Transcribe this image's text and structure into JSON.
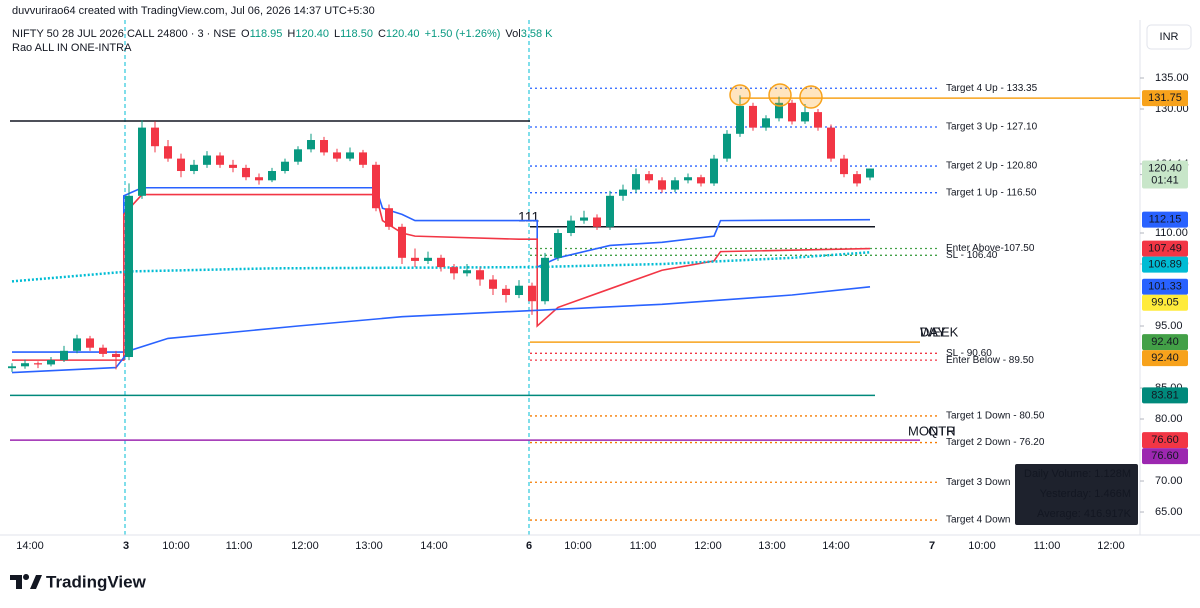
{
  "chart_data": {
    "type": "candlestick",
    "credit": "duvvurirao64 created with TradingView.com, Jul 06, 2026 14:37 UTC+5:30",
    "symbol": "NIFTY 50 28 JUL 2026 CALL 24800 · 3 · NSE",
    "ohlc": [
      {
        "key": "O",
        "value": 118.95,
        "label": "118.95"
      },
      {
        "key": "H",
        "value": 120.4,
        "label": "120.40"
      },
      {
        "key": "L",
        "value": 118.5,
        "label": "118.50"
      },
      {
        "key": "C",
        "value": 120.4,
        "label": "120.40"
      }
    ],
    "change": "+1.50 (+1.26%)",
    "volume_key": "Vol",
    "volume": "3.58 K",
    "indicator": "Rao ALL IN ONE-INTRA",
    "currency": "INR",
    "brand": "TradingView",
    "ylim": [
      62.1,
      139.84
    ],
    "yticks": [
      {
        "value": 135,
        "label": "135.00"
      },
      {
        "value": 130,
        "label": "130.00"
      },
      {
        "value": 121.14,
        "label": "121.14"
      },
      {
        "value": 119.42,
        "label": "119.42"
      },
      {
        "value": 110,
        "label": "110.00"
      },
      {
        "value": 105,
        "label": "105.00"
      },
      {
        "value": 95,
        "label": "95.00"
      },
      {
        "value": 85,
        "label": "85.00"
      },
      {
        "value": 80,
        "label": "80.00"
      },
      {
        "value": 70,
        "label": "70.00"
      },
      {
        "value": 65,
        "label": "65.00"
      }
    ],
    "time_labels": [
      "14:00",
      "3",
      "10:00",
      "11:00",
      "12:00",
      "13:00",
      "14:00",
      "6",
      "10:00",
      "11:00",
      "12:00",
      "13:00",
      "14:00",
      "7",
      "10:00",
      "11:00",
      "12:00"
    ],
    "up_color": "#089981",
    "down_color": "#f23645",
    "candles": [
      [
        88.2,
        89,
        87.6,
        88.5
      ],
      [
        88.5,
        89.6,
        88.1,
        89
      ],
      [
        89,
        89.3,
        88.2,
        88.8
      ],
      [
        88.8,
        90,
        88.5,
        89.5
      ],
      [
        89.5,
        91.8,
        89.2,
        91
      ],
      [
        91,
        93.6,
        90.6,
        93
      ],
      [
        93,
        93.4,
        91,
        91.5
      ],
      [
        91.5,
        92,
        90,
        90.5
      ],
      [
        90.5,
        91,
        88,
        90
      ],
      [
        90,
        118,
        89.5,
        116
      ],
      [
        116,
        128.2,
        115.5,
        127
      ],
      [
        127,
        128,
        123,
        124
      ],
      [
        124,
        125,
        121.5,
        122
      ],
      [
        122,
        122.8,
        119,
        120
      ],
      [
        120,
        121.8,
        119.5,
        121
      ],
      [
        121,
        123.2,
        120.5,
        122.5
      ],
      [
        122.5,
        123,
        120.5,
        121
      ],
      [
        121,
        121.8,
        119.8,
        120.5
      ],
      [
        120.5,
        121,
        118.5,
        119
      ],
      [
        119,
        119.6,
        117.8,
        118.5
      ],
      [
        118.5,
        120.5,
        118.2,
        120
      ],
      [
        120,
        122,
        119.6,
        121.5
      ],
      [
        121.5,
        124,
        121,
        123.5
      ],
      [
        123.5,
        126,
        123,
        125
      ],
      [
        125,
        125.5,
        122.5,
        123
      ],
      [
        123,
        123.6,
        121.5,
        122
      ],
      [
        122,
        123.8,
        121.6,
        123
      ],
      [
        123,
        123.4,
        120.5,
        121
      ],
      [
        121,
        121.5,
        113.5,
        114
      ],
      [
        114,
        114.6,
        110.5,
        111
      ],
      [
        111,
        111.5,
        105,
        106
      ],
      [
        106,
        107.5,
        104.5,
        105.5
      ],
      [
        105.5,
        107,
        105,
        106
      ],
      [
        106,
        106.5,
        103.8,
        104.5
      ],
      [
        104.5,
        105,
        102.5,
        103.5
      ],
      [
        103.5,
        105,
        103,
        104
      ],
      [
        104,
        104.5,
        101.5,
        102.5
      ],
      [
        102.5,
        103.2,
        100,
        101
      ],
      [
        101,
        101.6,
        98.8,
        100
      ],
      [
        100,
        102.4,
        99.5,
        101.5
      ],
      [
        101.5,
        102,
        96.8,
        99
      ],
      [
        99,
        106.8,
        98.5,
        106
      ],
      [
        106,
        110.6,
        105.5,
        110
      ],
      [
        110,
        112.8,
        109.5,
        112
      ],
      [
        112,
        113.6,
        111.5,
        112.5
      ],
      [
        112.5,
        113,
        110.5,
        111
      ],
      [
        111,
        116.8,
        110.5,
        116
      ],
      [
        116,
        117.8,
        115.2,
        117
      ],
      [
        117,
        120.4,
        116.5,
        119.5
      ],
      [
        119.5,
        120,
        118,
        118.5
      ],
      [
        118.5,
        119,
        116.5,
        117
      ],
      [
        117,
        119,
        116.6,
        118.5
      ],
      [
        118.5,
        119.6,
        118,
        119
      ],
      [
        119,
        119.4,
        117.5,
        118
      ],
      [
        118,
        122.6,
        117.6,
        122
      ],
      [
        122,
        126.6,
        121.5,
        126
      ],
      [
        126,
        132.2,
        125.5,
        130.5
      ],
      [
        130.5,
        131,
        126.5,
        127
      ],
      [
        127,
        129,
        126.5,
        128.5
      ],
      [
        128.5,
        132,
        128,
        131
      ],
      [
        131,
        131.5,
        127.5,
        128
      ],
      [
        128,
        130.8,
        127.6,
        129.5
      ],
      [
        129.5,
        130,
        126.5,
        127
      ],
      [
        127,
        127.5,
        121.5,
        122
      ],
      [
        122,
        122.6,
        119,
        119.5
      ],
      [
        119.5,
        120,
        117.5,
        118
      ],
      [
        118.95,
        120.4,
        118.5,
        120.4
      ]
    ],
    "series": [
      {
        "color": "#2962ff",
        "style": "solid",
        "x": [
          0,
          8.6,
          8.6,
          10,
          28,
          28.5,
          30,
          31,
          39,
          40.4,
          40.4,
          42,
          46,
          50,
          54,
          54.5,
          66
        ],
        "values": [
          90.8,
          90.8,
          116,
          117.3,
          117.3,
          114,
          113,
          112,
          112,
          112,
          104.5,
          106,
          108,
          108.5,
          109.5,
          112,
          112.15
        ]
      },
      {
        "color": "#f23645",
        "style": "solid",
        "x": [
          0,
          8.6,
          8.6,
          10,
          28,
          28.5,
          30,
          31,
          39,
          40.4,
          40.4,
          42,
          46,
          50,
          54,
          54.5,
          66
        ],
        "values": [
          89.5,
          89.5,
          113,
          116.2,
          116.2,
          112,
          110,
          109.5,
          109,
          109,
          95,
          98,
          101,
          104,
          105.5,
          107,
          107.49
        ]
      },
      {
        "color": "#00bcd4",
        "style": "dotted",
        "x": [
          0,
          9,
          20,
          30,
          40,
          50,
          60,
          66
        ],
        "values": [
          102.2,
          103.8,
          104.3,
          104.4,
          104.5,
          105,
          106,
          106.89
        ]
      },
      {
        "color": "#2962ff",
        "style": "solid",
        "x": [
          0,
          8,
          9,
          12,
          22,
          30,
          40,
          50,
          60,
          66
        ],
        "values": [
          87.5,
          88.3,
          91,
          93,
          95,
          96.5,
          97.5,
          98.5,
          100,
          101.33
        ]
      }
    ],
    "levels": [
      {
        "label": "Target 4 Up - 133.35",
        "value": 133.35,
        "color": "#2962ff"
      },
      {
        "label": "Target 3 Up - 127.10",
        "value": 127.1,
        "color": "#2962ff"
      },
      {
        "label": "Target 2 Up - 120.80",
        "value": 120.8,
        "color": "#2962ff"
      },
      {
        "label": "Target 1 Up - 116.50",
        "value": 116.5,
        "color": "#2962ff"
      },
      {
        "label": "Enter Above-107.50",
        "value": 107.5,
        "color": "#43a047"
      },
      {
        "label": "SL - 106.40",
        "value": 106.4,
        "color": "#43a047"
      },
      {
        "label": "SL - 90.60",
        "value": 90.6,
        "color": "#f23645"
      },
      {
        "label": "Enter Below - 89.50",
        "value": 89.5,
        "color": "#f23645"
      },
      {
        "label": "Target 1 Down - 80.50",
        "value": 80.5,
        "color": "#f57c00"
      },
      {
        "label": "Target 2 Down - 76.20",
        "value": 76.2,
        "color": "#f57c00"
      },
      {
        "label": "Target 3 Down",
        "value": 69.8,
        "color": "#f57c00"
      },
      {
        "label": "Target 4 Down",
        "value": 63.7,
        "color": "#f57c00"
      }
    ],
    "lines": [
      {
        "value": 128.06,
        "color": "#131722"
      },
      {
        "value": 111,
        "color": "#131722"
      },
      {
        "value": 131.75,
        "color": "#f7a21b"
      },
      {
        "value": 92.4,
        "color": "#f7a21b"
      },
      {
        "value": 83.81,
        "color": "#00897b"
      },
      {
        "value": 76.6,
        "color": "#9c27b0"
      }
    ],
    "period_labels": [
      {
        "text": "DAY",
        "color": "#8d9a2a"
      },
      {
        "text": "WEEK",
        "color": "#f7a21b"
      },
      {
        "text": "MONTH",
        "color": "#e91e63"
      },
      {
        "text": "QTR",
        "color": "#9c27b0"
      }
    ],
    "price_labels": [
      {
        "value": 131.75,
        "label": "131.75",
        "color": "#f7a21b",
        "text_color": "#131722"
      },
      {
        "value": 120.4,
        "label": "120.40",
        "color": "#c8e6c9",
        "text_color": "#131722",
        "countdown": "01:41"
      },
      {
        "value": 112.15,
        "label": "112.15",
        "color": "#2962ff",
        "text_color": "#ffffff"
      },
      {
        "value": 107.49,
        "label": "107.49",
        "color": "#f23645",
        "text_color": "#ffffff"
      },
      {
        "value": 106.89,
        "label": "106.89",
        "color": "#00bcd4",
        "text_color": "#131722"
      },
      {
        "value": 101.33,
        "label": "101.33",
        "color": "#2962ff",
        "text_color": "#ffffff"
      },
      {
        "value": 99.05,
        "label": "99.05",
        "color": "#ffeb3b",
        "text_color": "#131722"
      },
      {
        "value": 92.4,
        "label": "92.40",
        "color": "#43a047",
        "text_color": "#ffffff"
      },
      {
        "value": 92.4,
        "label": "92.40",
        "color": "#f7a21b",
        "text_color": "#131722"
      },
      {
        "value": 83.81,
        "label": "83.81",
        "color": "#00897b",
        "text_color": "#ffffff"
      },
      {
        "value": 76.6,
        "label": "76.60",
        "color": "#f23645",
        "text_color": "#ffffff"
      },
      {
        "value": 76.6,
        "label": "76.60",
        "color": "#9c27b0",
        "text_color": "#ffffff"
      }
    ],
    "volume_box": [
      "Daily Volume: 1.128M",
      "Yesterday: 1.466M",
      "Average: 416.917K"
    ]
  }
}
